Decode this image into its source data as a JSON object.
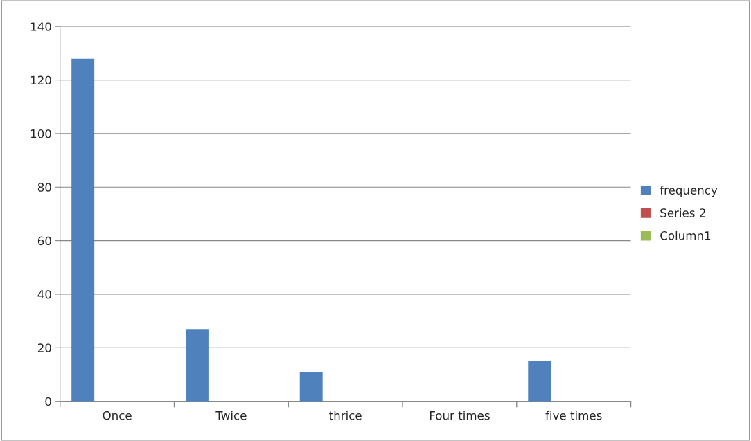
{
  "chart_data": {
    "type": "bar",
    "categories": [
      "Once",
      "Twice",
      "thrice",
      "Four times",
      "five times"
    ],
    "series": [
      {
        "name": "frequency",
        "color": "#4f81bd",
        "values": [
          128,
          27,
          11,
          null,
          15
        ]
      },
      {
        "name": "Series 2",
        "color": "#c0504d",
        "values": [
          null,
          null,
          null,
          null,
          null
        ]
      },
      {
        "name": "Column1",
        "color": "#9bbb59",
        "values": [
          null,
          null,
          null,
          null,
          null
        ]
      }
    ],
    "ylim": [
      0,
      140
    ],
    "yticks": [
      0,
      20,
      40,
      60,
      80,
      100,
      120,
      140
    ],
    "grid": "y",
    "legend": "right"
  }
}
